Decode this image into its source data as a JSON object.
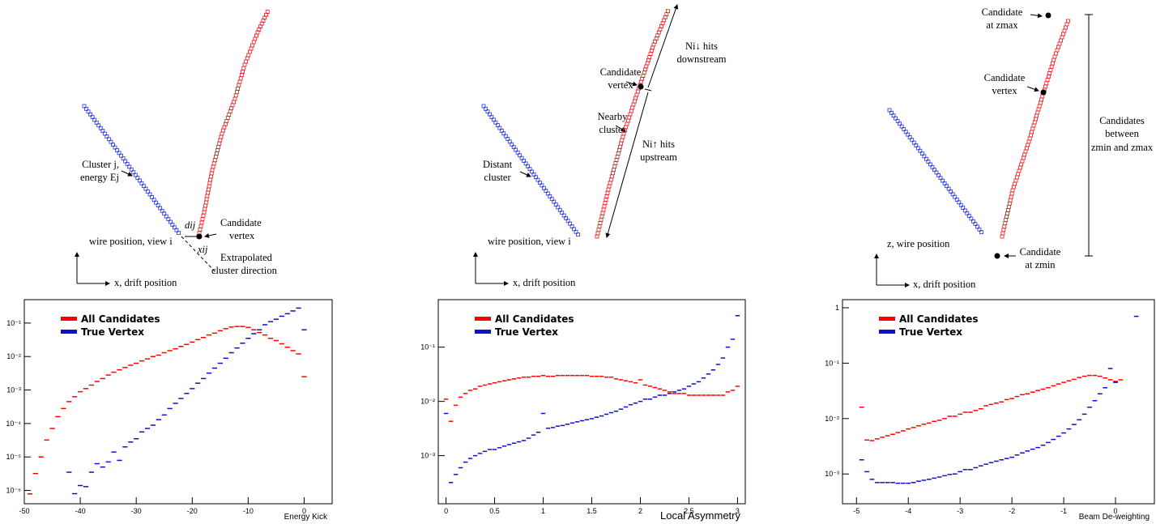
{
  "diagrams": [
    {
      "labels": [
        "Cluster j,",
        "energy Ej",
        "dij",
        "Candidate",
        "vertex",
        "xij",
        "wire position, view i",
        "x, drift position",
        "Extrapolated",
        "cluster direction"
      ]
    },
    {
      "labels": [
        "Candidate",
        "vertex",
        "Ni↓ hits",
        "downstream",
        "Nearby",
        "cluster",
        "Ni↑ hits",
        "upstream",
        "Distant",
        "cluster",
        "wire position, view i",
        "x, drift position"
      ]
    },
    {
      "labels": [
        "Candidate",
        "at zmax",
        "Candidate",
        "vertex",
        "Candidates",
        "between",
        "zmin and zmax",
        "Candidate",
        "at zmin",
        "z, wire position",
        "x, drift position"
      ]
    }
  ],
  "chart_data": [
    {
      "type": "histogram",
      "x_label": "Energy Kick",
      "yscale": "log",
      "legend": "upper left",
      "xlim": [
        -50,
        5
      ],
      "xticks": [
        -50,
        -40,
        -30,
        -20,
        -10,
        0
      ],
      "ylim": [
        4e-07,
        0.5
      ],
      "yticks": [
        {
          "value": 1e-06,
          "label": "10⁻⁶"
        },
        {
          "value": 1e-05,
          "label": "10⁻⁵"
        },
        {
          "value": 0.0001,
          "label": "10⁻⁴"
        },
        {
          "value": 0.001,
          "label": "10⁻³"
        },
        {
          "value": 0.01,
          "label": "10⁻²"
        },
        {
          "value": 0.1,
          "label": "10⁻¹"
        }
      ],
      "x": [
        -49,
        -48,
        -47,
        -46,
        -45,
        -44,
        -43,
        -42,
        -41,
        -40,
        -39,
        -38,
        -37,
        -36,
        -35,
        -34,
        -33,
        -32,
        -31,
        -30,
        -29,
        -28,
        -27,
        -26,
        -25,
        -24,
        -23,
        -22,
        -21,
        -20,
        -19,
        -18,
        -17,
        -16,
        -15,
        -14,
        -13,
        -12,
        -11,
        -10,
        -9,
        -8,
        -7,
        -6,
        -5,
        -4,
        -3,
        -2,
        -1,
        0
      ],
      "series": [
        {
          "name": "All Candidates",
          "color": "#ff0000",
          "values": [
            7.9e-07,
            3.2e-06,
            1e-05,
            3.2e-05,
            7.1e-05,
            0.00016,
            0.00028,
            0.00045,
            0.00063,
            0.00089,
            0.0011,
            0.0014,
            0.0018,
            0.0022,
            0.0028,
            0.0034,
            0.004,
            0.0047,
            0.0055,
            0.0063,
            0.0074,
            0.0085,
            0.01,
            0.011,
            0.013,
            0.015,
            0.017,
            0.02,
            0.023,
            0.027,
            0.032,
            0.037,
            0.044,
            0.05,
            0.059,
            0.068,
            0.076,
            0.079,
            0.079,
            0.074,
            0.063,
            0.052,
            0.044,
            0.035,
            0.03,
            0.024,
            0.019,
            0.015,
            0.012,
            0.0025
          ]
        },
        {
          "name": "True Vertex",
          "color": "#1010c8",
          "values": [
            null,
            null,
            null,
            null,
            null,
            null,
            null,
            3.5e-06,
            8e-07,
            1.4e-06,
            1.3e-06,
            3.5e-06,
            6.3e-06,
            5e-06,
            7.1e-06,
            1.4e-05,
            7.9e-06,
            2e-05,
            2.8e-05,
            3.5e-05,
            5.6e-05,
            7.1e-05,
            8.9e-05,
            0.00013,
            0.00018,
            0.00028,
            0.0004,
            0.00056,
            0.00079,
            0.0011,
            0.0016,
            0.0022,
            0.0032,
            0.0045,
            0.0063,
            0.0089,
            0.013,
            0.018,
            0.025,
            0.035,
            0.048,
            0.063,
            0.089,
            0.11,
            0.13,
            0.16,
            0.19,
            0.23,
            0.28,
            0.063
          ]
        }
      ]
    },
    {
      "type": "histogram",
      "x_label": "Local Asymmetry",
      "yscale": "log",
      "legend": "upper left",
      "xlim": [
        -0.08,
        3.08
      ],
      "xticks": [
        0,
        0.5,
        1,
        1.5,
        2,
        2.5,
        3
      ],
      "ylim": [
        0.00013,
        0.75
      ],
      "yticks": [
        {
          "value": 0.001,
          "label": "10⁻³"
        },
        {
          "value": 0.01,
          "label": "10⁻²"
        },
        {
          "value": 0.1,
          "label": "10⁻¹"
        }
      ],
      "x": [
        0,
        0.05,
        0.1,
        0.15,
        0.2,
        0.25,
        0.3,
        0.35,
        0.4,
        0.45,
        0.5,
        0.55,
        0.6,
        0.65,
        0.7,
        0.75,
        0.8,
        0.85,
        0.9,
        0.95,
        1,
        1.05,
        1.1,
        1.15,
        1.2,
        1.25,
        1.3,
        1.35,
        1.4,
        1.45,
        1.5,
        1.55,
        1.6,
        1.65,
        1.7,
        1.75,
        1.8,
        1.85,
        1.9,
        1.95,
        2,
        2.05,
        2.1,
        2.15,
        2.2,
        2.25,
        2.3,
        2.35,
        2.4,
        2.45,
        2.5,
        2.55,
        2.6,
        2.65,
        2.7,
        2.75,
        2.8,
        2.85,
        2.9,
        2.95,
        3
      ],
      "series": [
        {
          "name": "All Candidates",
          "color": "#ff0000",
          "values": [
            0.011,
            0.0043,
            0.0085,
            0.012,
            0.014,
            0.016,
            0.017,
            0.019,
            0.02,
            0.021,
            0.022,
            0.023,
            0.024,
            0.025,
            0.026,
            0.027,
            0.028,
            0.028,
            0.029,
            0.029,
            0.03,
            0.029,
            0.029,
            0.03,
            0.03,
            0.03,
            0.03,
            0.03,
            0.03,
            0.03,
            0.029,
            0.029,
            0.029,
            0.028,
            0.028,
            0.026,
            0.025,
            0.024,
            0.023,
            0.022,
            0.025,
            0.02,
            0.019,
            0.018,
            0.017,
            0.016,
            0.015,
            0.014,
            0.014,
            0.014,
            0.013,
            0.013,
            0.013,
            0.013,
            0.013,
            0.013,
            0.013,
            0.013,
            0.015,
            0.016,
            0.019
          ]
        },
        {
          "name": "True Vertex",
          "color": "#1010c8",
          "values": [
            0.006,
            0.00032,
            0.00045,
            0.0006,
            0.00076,
            0.00089,
            0.001,
            0.0011,
            0.0012,
            0.0013,
            0.0013,
            0.0014,
            0.0015,
            0.0016,
            0.0017,
            0.0018,
            0.0019,
            0.0021,
            0.0024,
            0.0027,
            0.006,
            0.0032,
            0.0033,
            0.0035,
            0.0036,
            0.0038,
            0.004,
            0.0042,
            0.0044,
            0.0046,
            0.0048,
            0.0051,
            0.0054,
            0.0058,
            0.0062,
            0.0066,
            0.0072,
            0.0079,
            0.0087,
            0.0093,
            0.01,
            0.011,
            0.011,
            0.012,
            0.013,
            0.013,
            0.014,
            0.015,
            0.016,
            0.017,
            0.019,
            0.021,
            0.023,
            0.027,
            0.032,
            0.038,
            0.048,
            0.063,
            0.1,
            0.14,
            0.38
          ]
        }
      ]
    },
    {
      "type": "histogram",
      "x_label": "Beam De-weighting",
      "yscale": "log",
      "legend": "upper left",
      "xlim": [
        -5.27,
        0.75
      ],
      "xticks": [
        -5,
        -4,
        -3,
        -2,
        -1,
        0
      ],
      "ylim": [
        0.00029,
        1.4
      ],
      "yticks": [
        {
          "value": 0.001,
          "label": "10⁻³"
        },
        {
          "value": 0.01,
          "label": "10⁻²"
        },
        {
          "value": 0.1,
          "label": "10⁻¹"
        },
        1
      ],
      "x": [
        -4.9,
        -4.8,
        -4.7,
        -4.6,
        -4.5,
        -4.4,
        -4.3,
        -4.2,
        -4.1,
        -4,
        -3.9,
        -3.8,
        -3.7,
        -3.6,
        -3.5,
        -3.4,
        -3.3,
        -3.2,
        -3.1,
        -3,
        -2.9,
        -2.8,
        -2.7,
        -2.6,
        -2.5,
        -2.4,
        -2.3,
        -2.2,
        -2.1,
        -2,
        -1.9,
        -1.8,
        -1.7,
        -1.6,
        -1.5,
        -1.4,
        -1.3,
        -1.2,
        -1.1,
        -1,
        -0.9,
        -0.8,
        -0.7,
        -0.6,
        -0.5,
        -0.4,
        -0.3,
        -0.2,
        -0.1,
        0,
        0.1,
        0.2,
        0.3,
        0.4
      ],
      "series": [
        {
          "name": "All Candidates",
          "color": "#ff0000",
          "values": [
            0.016,
            0.0041,
            0.004,
            0.0043,
            0.0046,
            0.0049,
            0.0052,
            0.0056,
            0.006,
            0.0065,
            0.0069,
            0.0074,
            0.0079,
            0.0083,
            0.0089,
            0.0093,
            0.01,
            0.011,
            0.011,
            0.012,
            0.013,
            0.013,
            0.014,
            0.015,
            0.017,
            0.018,
            0.019,
            0.02,
            0.022,
            0.023,
            0.025,
            0.027,
            0.028,
            0.03,
            0.032,
            0.034,
            0.036,
            0.039,
            0.042,
            0.045,
            0.048,
            0.051,
            0.055,
            0.058,
            0.06,
            0.06,
            0.058,
            0.054,
            0.05,
            0.047,
            0.05,
            null,
            null,
            null
          ]
        },
        {
          "name": "True Vertex",
          "color": "#1010c8",
          "values": [
            0.0018,
            0.0011,
            0.0008,
            0.0007,
            0.0007,
            0.0007,
            0.0007,
            0.00068,
            0.00068,
            0.00068,
            0.0007,
            0.00074,
            0.00077,
            0.0008,
            0.00084,
            0.00088,
            0.00093,
            0.00098,
            0.001,
            0.0011,
            0.0012,
            0.0012,
            0.0013,
            0.0014,
            0.0015,
            0.0016,
            0.0017,
            0.0018,
            0.0019,
            0.002,
            0.0022,
            0.0024,
            0.0026,
            0.0028,
            0.003,
            0.0033,
            0.0037,
            0.0042,
            0.0048,
            0.0055,
            0.0065,
            0.0078,
            0.0095,
            0.012,
            0.016,
            0.021,
            0.028,
            0.036,
            0.08,
            0.045,
            null,
            null,
            null,
            0.7
          ]
        }
      ]
    }
  ]
}
